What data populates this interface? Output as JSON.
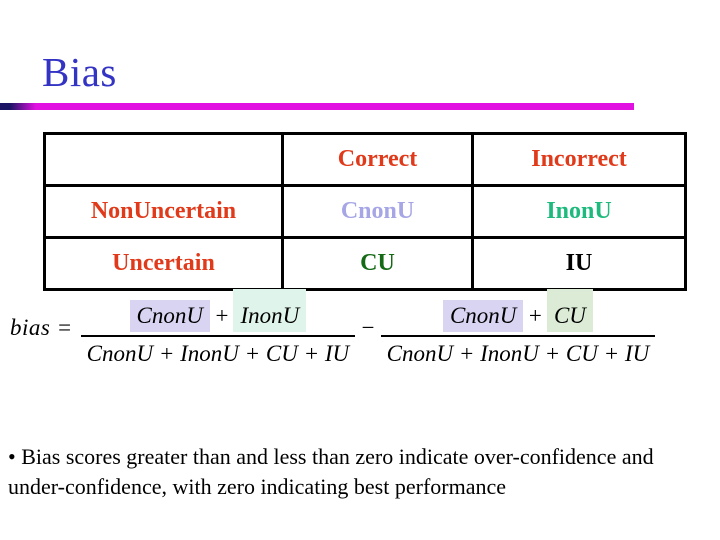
{
  "slide": {
    "title": "Bias",
    "colors": {
      "title": "#3434c4",
      "accent_line_dark": "#1b1464",
      "accent_line_magenta": "#e112e1",
      "table_label_red": "#e03a1a",
      "cnonu_text": "#a6a6e6",
      "inonu_text": "#1eb97d",
      "cu_text": "#156b15",
      "iu_text": "#000000",
      "highlight_lavender": "#d8d4f2",
      "highlight_mint": "#dff5ec",
      "highlight_green": "#dcebd6"
    }
  },
  "table": {
    "headers": {
      "col1": "",
      "col2": "Correct",
      "col3": "Incorrect"
    },
    "rows": [
      {
        "label": "NonUncertain",
        "correct": "CnonU",
        "incorrect": "InonU"
      },
      {
        "label": "Uncertain",
        "correct": "CU",
        "incorrect": "IU"
      }
    ]
  },
  "formula": {
    "lhs": "bias",
    "equals": "=",
    "minus": "−",
    "fraction1": {
      "numerator_terms": [
        {
          "text": "CnonU"
        },
        {
          "text": "+"
        },
        {
          "text": "InonU"
        }
      ],
      "denominator": "CnonU + InonU + CU + IU"
    },
    "fraction2": {
      "numerator_terms": [
        {
          "text": "CnonU"
        },
        {
          "text": "+"
        },
        {
          "text": "CU"
        }
      ],
      "denominator": "CnonU + InonU + CU + IU"
    }
  },
  "bullet": {
    "marker": "•",
    "text": "Bias scores greater than and less than zero indicate over-confidence and under-confidence, with zero indicating best performance"
  }
}
